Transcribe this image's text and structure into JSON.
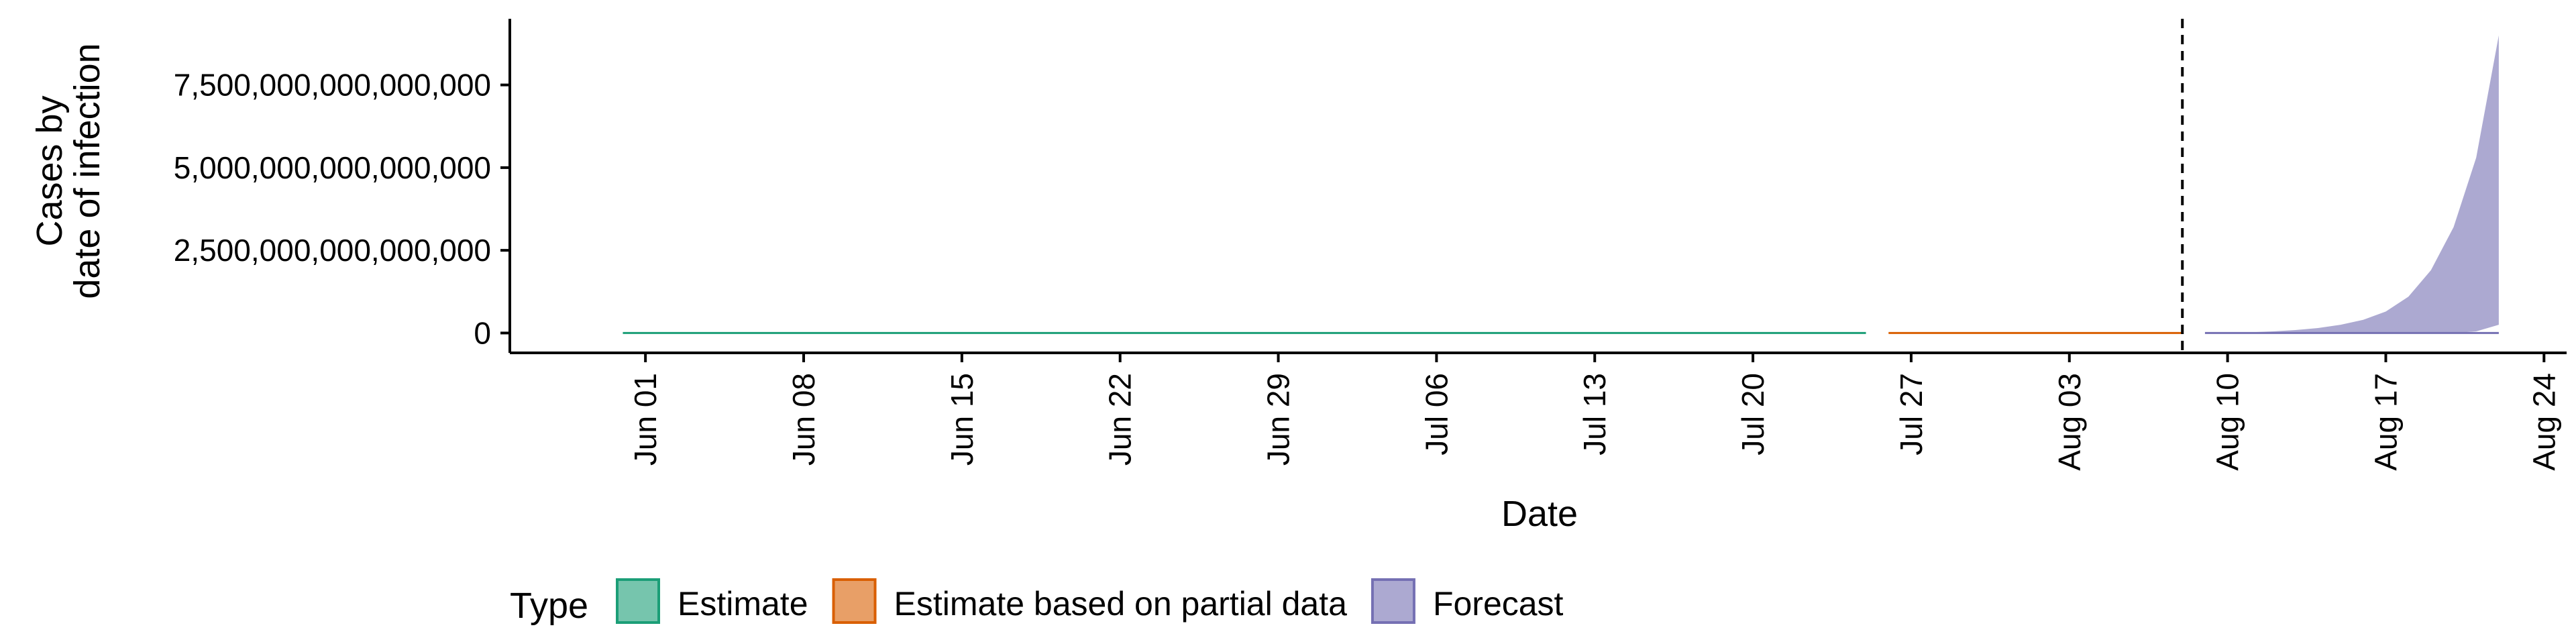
{
  "chart_data": {
    "type": "area",
    "xlabel": "Date",
    "ylabel_lines": [
      "Cases by",
      "date of infection"
    ],
    "x_domain": [
      "2020-05-26",
      "2020-08-25"
    ],
    "y_domain": [
      -600000000000000,
      9500000000000000
    ],
    "x_ticks": [
      {
        "date": "2020-06-01",
        "label": "Jun 01"
      },
      {
        "date": "2020-06-08",
        "label": "Jun 08"
      },
      {
        "date": "2020-06-15",
        "label": "Jun 15"
      },
      {
        "date": "2020-06-22",
        "label": "Jun 22"
      },
      {
        "date": "2020-06-29",
        "label": "Jun 29"
      },
      {
        "date": "2020-07-06",
        "label": "Jul 06"
      },
      {
        "date": "2020-07-13",
        "label": "Jul 13"
      },
      {
        "date": "2020-07-20",
        "label": "Jul 20"
      },
      {
        "date": "2020-07-27",
        "label": "Jul 27"
      },
      {
        "date": "2020-08-03",
        "label": "Aug 03"
      },
      {
        "date": "2020-08-10",
        "label": "Aug 10"
      },
      {
        "date": "2020-08-17",
        "label": "Aug 17"
      },
      {
        "date": "2020-08-24",
        "label": "Aug 24"
      }
    ],
    "y_ticks": [
      {
        "value": 0,
        "label": "0"
      },
      {
        "value": 2500000000000000,
        "label": "2,500,000,000,000,000"
      },
      {
        "value": 5000000000000000,
        "label": "5,000,000,000,000,000"
      },
      {
        "value": 7500000000000000,
        "label": "7,500,000,000,000,000"
      }
    ],
    "vline_date": "2020-08-08",
    "legend": {
      "title": "Type",
      "position": "bottom"
    },
    "series": [
      {
        "name": "Estimate",
        "fill": "#1b9e77",
        "x": [
          "2020-05-31",
          "2020-07-25"
        ],
        "lower": [
          0,
          0
        ],
        "upper": [
          0,
          0
        ]
      },
      {
        "name": "Estimate based on partial data",
        "fill": "#d95f02",
        "x": [
          "2020-07-26",
          "2020-08-08"
        ],
        "lower": [
          0,
          0
        ],
        "upper": [
          0,
          0
        ]
      },
      {
        "name": "Forecast",
        "fill": "#7570b3",
        "x": [
          "2020-08-09",
          "2020-08-10",
          "2020-08-11",
          "2020-08-12",
          "2020-08-13",
          "2020-08-14",
          "2020-08-15",
          "2020-08-16",
          "2020-08-17",
          "2020-08-18",
          "2020-08-19",
          "2020-08-20",
          "2020-08-21",
          "2020-08-22"
        ],
        "lower": [
          0,
          0,
          0,
          0,
          0,
          0,
          0,
          0,
          0,
          0,
          0,
          0,
          50000000000000,
          250000000000000
        ],
        "upper": [
          0,
          10000000000000,
          20000000000000,
          50000000000000,
          90000000000000,
          150000000000000,
          250000000000000,
          400000000000000,
          650000000000000,
          1100000000000000,
          1900000000000000,
          3200000000000000,
          5300000000000000,
          9000000000000000
        ]
      }
    ]
  }
}
